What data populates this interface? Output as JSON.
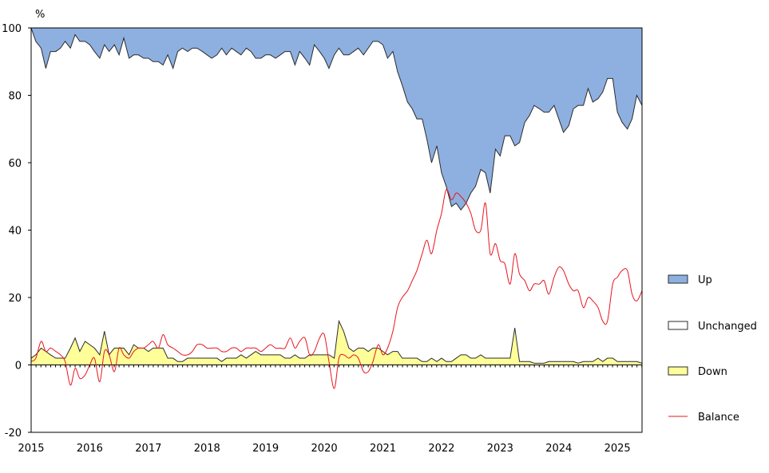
{
  "chart_data": {
    "type": "area",
    "unit_label": "%",
    "xlim": [
      2015.0,
      2025.42
    ],
    "ylim": [
      -20,
      100
    ],
    "x_ticks": [
      {
        "value": 2015,
        "label": "2015"
      },
      {
        "value": 2016,
        "label": "2016"
      },
      {
        "value": 2017,
        "label": "2017"
      },
      {
        "value": 2018,
        "label": "2018"
      },
      {
        "value": 2019,
        "label": "2019"
      },
      {
        "value": 2020,
        "label": "2020"
      },
      {
        "value": 2021,
        "label": "2021"
      },
      {
        "value": 2022,
        "label": "2022"
      },
      {
        "value": 2023,
        "label": "2023"
      },
      {
        "value": 2024,
        "label": "2024"
      },
      {
        "value": 2025,
        "label": "2025"
      }
    ],
    "y_ticks": [
      {
        "value": 100,
        "label": "100"
      },
      {
        "value": 80,
        "label": "80"
      },
      {
        "value": 60,
        "label": "60"
      },
      {
        "value": 40,
        "label": "40"
      },
      {
        "value": 20,
        "label": "20"
      },
      {
        "value": 0,
        "label": "0"
      },
      {
        "value": -20,
        "label": "-20"
      }
    ],
    "legend_position": "right",
    "colors": {
      "up": "#8db0e0",
      "unchanged": "#ffffff",
      "down": "#ffff99",
      "balance": "#e8141e",
      "outline": "#2b2b2b"
    },
    "series": [
      {
        "name": "Up",
        "key": "up",
        "style": "area-top"
      },
      {
        "name": "Unchanged",
        "key": "unchanged",
        "style": "area-middle"
      },
      {
        "name": "Down",
        "key": "down",
        "style": "area-bottom"
      },
      {
        "name": "Balance",
        "key": "balance",
        "style": "line"
      }
    ],
    "up_floor": [
      [
        2015.0,
        100
      ],
      [
        2015.08,
        96
      ],
      [
        2015.17,
        94
      ],
      [
        2015.25,
        88
      ],
      [
        2015.33,
        93
      ],
      [
        2015.42,
        93
      ],
      [
        2015.5,
        94
      ],
      [
        2015.58,
        96
      ],
      [
        2015.67,
        94
      ],
      [
        2015.75,
        98
      ],
      [
        2015.83,
        96
      ],
      [
        2015.92,
        96
      ],
      [
        2016.0,
        95
      ],
      [
        2016.08,
        93
      ],
      [
        2016.17,
        91
      ],
      [
        2016.25,
        95
      ],
      [
        2016.33,
        93
      ],
      [
        2016.42,
        95
      ],
      [
        2016.5,
        92
      ],
      [
        2016.58,
        97
      ],
      [
        2016.67,
        91
      ],
      [
        2016.75,
        92
      ],
      [
        2016.83,
        92
      ],
      [
        2016.92,
        91
      ],
      [
        2017.0,
        91
      ],
      [
        2017.08,
        90
      ],
      [
        2017.17,
        90
      ],
      [
        2017.25,
        89
      ],
      [
        2017.33,
        92
      ],
      [
        2017.42,
        88
      ],
      [
        2017.5,
        93
      ],
      [
        2017.58,
        94
      ],
      [
        2017.67,
        93
      ],
      [
        2017.75,
        94
      ],
      [
        2017.83,
        94
      ],
      [
        2017.92,
        93
      ],
      [
        2018.0,
        92
      ],
      [
        2018.08,
        91
      ],
      [
        2018.17,
        92
      ],
      [
        2018.25,
        94
      ],
      [
        2018.33,
        92
      ],
      [
        2018.42,
        94
      ],
      [
        2018.5,
        93
      ],
      [
        2018.58,
        92
      ],
      [
        2018.67,
        94
      ],
      [
        2018.75,
        93
      ],
      [
        2018.83,
        91
      ],
      [
        2018.92,
        91
      ],
      [
        2019.0,
        92
      ],
      [
        2019.08,
        92
      ],
      [
        2019.17,
        91
      ],
      [
        2019.25,
        92
      ],
      [
        2019.33,
        93
      ],
      [
        2019.42,
        93
      ],
      [
        2019.5,
        89
      ],
      [
        2019.58,
        93
      ],
      [
        2019.67,
        91
      ],
      [
        2019.75,
        89
      ],
      [
        2019.83,
        95
      ],
      [
        2019.92,
        93
      ],
      [
        2020.0,
        91
      ],
      [
        2020.08,
        88
      ],
      [
        2020.17,
        92
      ],
      [
        2020.25,
        94
      ],
      [
        2020.33,
        92
      ],
      [
        2020.42,
        92
      ],
      [
        2020.5,
        93
      ],
      [
        2020.58,
        94
      ],
      [
        2020.67,
        92
      ],
      [
        2020.75,
        94
      ],
      [
        2020.83,
        96
      ],
      [
        2020.92,
        96
      ],
      [
        2021.0,
        95
      ],
      [
        2021.08,
        91
      ],
      [
        2021.17,
        93
      ],
      [
        2021.25,
        87
      ],
      [
        2021.33,
        83
      ],
      [
        2021.42,
        78
      ],
      [
        2021.5,
        76
      ],
      [
        2021.58,
        73
      ],
      [
        2021.67,
        73
      ],
      [
        2021.75,
        67
      ],
      [
        2021.83,
        60
      ],
      [
        2021.92,
        65
      ],
      [
        2022.0,
        57
      ],
      [
        2022.08,
        53
      ],
      [
        2022.17,
        47
      ],
      [
        2022.25,
        48
      ],
      [
        2022.33,
        46
      ],
      [
        2022.42,
        48
      ],
      [
        2022.5,
        51
      ],
      [
        2022.58,
        53
      ],
      [
        2022.67,
        58
      ],
      [
        2022.75,
        57
      ],
      [
        2022.83,
        51
      ],
      [
        2022.92,
        64
      ],
      [
        2023.0,
        62
      ],
      [
        2023.08,
        68
      ],
      [
        2023.17,
        68
      ],
      [
        2023.25,
        65
      ],
      [
        2023.33,
        66
      ],
      [
        2023.42,
        72
      ],
      [
        2023.5,
        74
      ],
      [
        2023.58,
        77
      ],
      [
        2023.67,
        76
      ],
      [
        2023.75,
        75
      ],
      [
        2023.83,
        75
      ],
      [
        2023.92,
        77
      ],
      [
        2024.0,
        73
      ],
      [
        2024.08,
        69
      ],
      [
        2024.17,
        71
      ],
      [
        2024.25,
        76
      ],
      [
        2024.33,
        77
      ],
      [
        2024.42,
        77
      ],
      [
        2024.5,
        82
      ],
      [
        2024.58,
        78
      ],
      [
        2024.67,
        79
      ],
      [
        2024.75,
        81
      ],
      [
        2024.83,
        85
      ],
      [
        2024.92,
        85
      ],
      [
        2025.0,
        75
      ],
      [
        2025.08,
        72
      ],
      [
        2025.17,
        70
      ],
      [
        2025.25,
        73
      ],
      [
        2025.33,
        80
      ],
      [
        2025.42,
        77
      ]
    ],
    "down": [
      [
        2015.0,
        2
      ],
      [
        2015.08,
        3
      ],
      [
        2015.17,
        5
      ],
      [
        2015.25,
        4
      ],
      [
        2015.33,
        3
      ],
      [
        2015.42,
        2
      ],
      [
        2015.5,
        2
      ],
      [
        2015.58,
        2
      ],
      [
        2015.67,
        5
      ],
      [
        2015.75,
        8
      ],
      [
        2015.83,
        4
      ],
      [
        2015.92,
        7
      ],
      [
        2016.0,
        6
      ],
      [
        2016.08,
        5
      ],
      [
        2016.17,
        3
      ],
      [
        2016.25,
        10
      ],
      [
        2016.33,
        3
      ],
      [
        2016.42,
        5
      ],
      [
        2016.5,
        5
      ],
      [
        2016.58,
        5
      ],
      [
        2016.67,
        3
      ],
      [
        2016.75,
        6
      ],
      [
        2016.83,
        5
      ],
      [
        2016.92,
        5
      ],
      [
        2017.0,
        4
      ],
      [
        2017.08,
        5
      ],
      [
        2017.17,
        5
      ],
      [
        2017.25,
        5
      ],
      [
        2017.33,
        2
      ],
      [
        2017.42,
        2
      ],
      [
        2017.5,
        1
      ],
      [
        2017.58,
        1
      ],
      [
        2017.67,
        2
      ],
      [
        2017.75,
        2
      ],
      [
        2017.83,
        2
      ],
      [
        2017.92,
        2
      ],
      [
        2018.0,
        2
      ],
      [
        2018.08,
        2
      ],
      [
        2018.17,
        2
      ],
      [
        2018.25,
        1
      ],
      [
        2018.33,
        2
      ],
      [
        2018.42,
        2
      ],
      [
        2018.5,
        2
      ],
      [
        2018.58,
        3
      ],
      [
        2018.67,
        2
      ],
      [
        2018.75,
        3
      ],
      [
        2018.83,
        4
      ],
      [
        2018.92,
        3
      ],
      [
        2019.0,
        3
      ],
      [
        2019.08,
        3
      ],
      [
        2019.17,
        3
      ],
      [
        2019.25,
        3
      ],
      [
        2019.33,
        2
      ],
      [
        2019.42,
        2
      ],
      [
        2019.5,
        3
      ],
      [
        2019.58,
        2
      ],
      [
        2019.67,
        2
      ],
      [
        2019.75,
        3
      ],
      [
        2019.83,
        3
      ],
      [
        2019.92,
        3
      ],
      [
        2020.0,
        3
      ],
      [
        2020.08,
        3
      ],
      [
        2020.17,
        2
      ],
      [
        2020.25,
        13
      ],
      [
        2020.33,
        10
      ],
      [
        2020.42,
        5
      ],
      [
        2020.5,
        4
      ],
      [
        2020.58,
        5
      ],
      [
        2020.67,
        5
      ],
      [
        2020.75,
        4
      ],
      [
        2020.83,
        5
      ],
      [
        2020.92,
        5
      ],
      [
        2021.0,
        4
      ],
      [
        2021.08,
        3
      ],
      [
        2021.17,
        4
      ],
      [
        2021.25,
        4
      ],
      [
        2021.33,
        2
      ],
      [
        2021.42,
        2
      ],
      [
        2021.5,
        2
      ],
      [
        2021.58,
        2
      ],
      [
        2021.67,
        1
      ],
      [
        2021.75,
        1
      ],
      [
        2021.83,
        2
      ],
      [
        2021.92,
        1
      ],
      [
        2022.0,
        2
      ],
      [
        2022.08,
        1
      ],
      [
        2022.17,
        1
      ],
      [
        2022.25,
        2
      ],
      [
        2022.33,
        3
      ],
      [
        2022.42,
        3
      ],
      [
        2022.5,
        2
      ],
      [
        2022.58,
        2
      ],
      [
        2022.67,
        3
      ],
      [
        2022.75,
        2
      ],
      [
        2022.83,
        2
      ],
      [
        2022.92,
        2
      ],
      [
        2023.0,
        2
      ],
      [
        2023.08,
        2
      ],
      [
        2023.17,
        2
      ],
      [
        2023.25,
        11
      ],
      [
        2023.33,
        1
      ],
      [
        2023.42,
        1
      ],
      [
        2023.5,
        1
      ],
      [
        2023.58,
        0.5
      ],
      [
        2023.67,
        0.5
      ],
      [
        2023.75,
        0.5
      ],
      [
        2023.83,
        1
      ],
      [
        2023.92,
        1
      ],
      [
        2024.0,
        1
      ],
      [
        2024.08,
        1
      ],
      [
        2024.17,
        1
      ],
      [
        2024.25,
        1
      ],
      [
        2024.33,
        0.5
      ],
      [
        2024.42,
        1
      ],
      [
        2024.5,
        1
      ],
      [
        2024.58,
        1
      ],
      [
        2024.67,
        2
      ],
      [
        2024.75,
        1
      ],
      [
        2024.83,
        2
      ],
      [
        2024.92,
        2
      ],
      [
        2025.0,
        1
      ],
      [
        2025.08,
        1
      ],
      [
        2025.17,
        1
      ],
      [
        2025.25,
        1
      ],
      [
        2025.33,
        1
      ],
      [
        2025.42,
        0.5
      ]
    ],
    "balance": [
      [
        2015.0,
        1
      ],
      [
        2015.08,
        2
      ],
      [
        2015.17,
        7
      ],
      [
        2015.25,
        4
      ],
      [
        2015.33,
        5
      ],
      [
        2015.42,
        4
      ],
      [
        2015.5,
        3
      ],
      [
        2015.58,
        1
      ],
      [
        2015.67,
        -6
      ],
      [
        2015.75,
        -1
      ],
      [
        2015.83,
        -4
      ],
      [
        2015.92,
        -3
      ],
      [
        2016.0,
        0
      ],
      [
        2016.08,
        2
      ],
      [
        2016.17,
        -5
      ],
      [
        2016.25,
        4
      ],
      [
        2016.33,
        3
      ],
      [
        2016.42,
        -2
      ],
      [
        2016.5,
        5
      ],
      [
        2016.58,
        3
      ],
      [
        2016.67,
        2
      ],
      [
        2016.75,
        4
      ],
      [
        2016.83,
        5
      ],
      [
        2016.92,
        5
      ],
      [
        2017.0,
        6
      ],
      [
        2017.08,
        7
      ],
      [
        2017.17,
        5
      ],
      [
        2017.25,
        9
      ],
      [
        2017.33,
        6
      ],
      [
        2017.42,
        5
      ],
      [
        2017.5,
        4
      ],
      [
        2017.58,
        3
      ],
      [
        2017.67,
        3
      ],
      [
        2017.75,
        4
      ],
      [
        2017.83,
        6
      ],
      [
        2017.92,
        6
      ],
      [
        2018.0,
        5
      ],
      [
        2018.08,
        5
      ],
      [
        2018.17,
        5
      ],
      [
        2018.25,
        4
      ],
      [
        2018.33,
        4
      ],
      [
        2018.42,
        5
      ],
      [
        2018.5,
        5
      ],
      [
        2018.58,
        4
      ],
      [
        2018.67,
        5
      ],
      [
        2018.75,
        5
      ],
      [
        2018.83,
        5
      ],
      [
        2018.92,
        4
      ],
      [
        2019.0,
        5
      ],
      [
        2019.08,
        6
      ],
      [
        2019.17,
        5
      ],
      [
        2019.25,
        5
      ],
      [
        2019.33,
        5
      ],
      [
        2019.42,
        8
      ],
      [
        2019.5,
        5
      ],
      [
        2019.58,
        7
      ],
      [
        2019.67,
        8
      ],
      [
        2019.75,
        3
      ],
      [
        2019.83,
        4
      ],
      [
        2019.92,
        8
      ],
      [
        2020.0,
        9
      ],
      [
        2020.08,
        1
      ],
      [
        2020.17,
        -7
      ],
      [
        2020.25,
        2
      ],
      [
        2020.33,
        3
      ],
      [
        2020.42,
        2
      ],
      [
        2020.5,
        3
      ],
      [
        2020.58,
        2
      ],
      [
        2020.67,
        -2
      ],
      [
        2020.75,
        -2
      ],
      [
        2020.83,
        1
      ],
      [
        2020.92,
        6
      ],
      [
        2021.0,
        3
      ],
      [
        2021.08,
        5
      ],
      [
        2021.17,
        10
      ],
      [
        2021.25,
        17
      ],
      [
        2021.33,
        20
      ],
      [
        2021.42,
        22
      ],
      [
        2021.5,
        25
      ],
      [
        2021.58,
        28
      ],
      [
        2021.67,
        33
      ],
      [
        2021.75,
        37
      ],
      [
        2021.83,
        33
      ],
      [
        2021.92,
        40
      ],
      [
        2022.0,
        45
      ],
      [
        2022.08,
        52
      ],
      [
        2022.17,
        49
      ],
      [
        2022.25,
        51
      ],
      [
        2022.33,
        50
      ],
      [
        2022.42,
        48
      ],
      [
        2022.5,
        45
      ],
      [
        2022.58,
        40
      ],
      [
        2022.67,
        40
      ],
      [
        2022.75,
        48
      ],
      [
        2022.83,
        33
      ],
      [
        2022.92,
        36
      ],
      [
        2023.0,
        31
      ],
      [
        2023.08,
        30
      ],
      [
        2023.17,
        24
      ],
      [
        2023.25,
        33
      ],
      [
        2023.33,
        27
      ],
      [
        2023.42,
        25
      ],
      [
        2023.5,
        22
      ],
      [
        2023.58,
        24
      ],
      [
        2023.67,
        24
      ],
      [
        2023.75,
        25
      ],
      [
        2023.83,
        21
      ],
      [
        2023.92,
        26
      ],
      [
        2024.0,
        29
      ],
      [
        2024.08,
        28
      ],
      [
        2024.17,
        24
      ],
      [
        2024.25,
        22
      ],
      [
        2024.33,
        22
      ],
      [
        2024.42,
        17
      ],
      [
        2024.5,
        20
      ],
      [
        2024.58,
        19
      ],
      [
        2024.67,
        17
      ],
      [
        2024.75,
        13
      ],
      [
        2024.83,
        13
      ],
      [
        2024.92,
        24
      ],
      [
        2025.0,
        26
      ],
      [
        2025.08,
        28
      ],
      [
        2025.17,
        28
      ],
      [
        2025.25,
        21
      ],
      [
        2025.33,
        19
      ],
      [
        2025.42,
        22
      ]
    ]
  }
}
